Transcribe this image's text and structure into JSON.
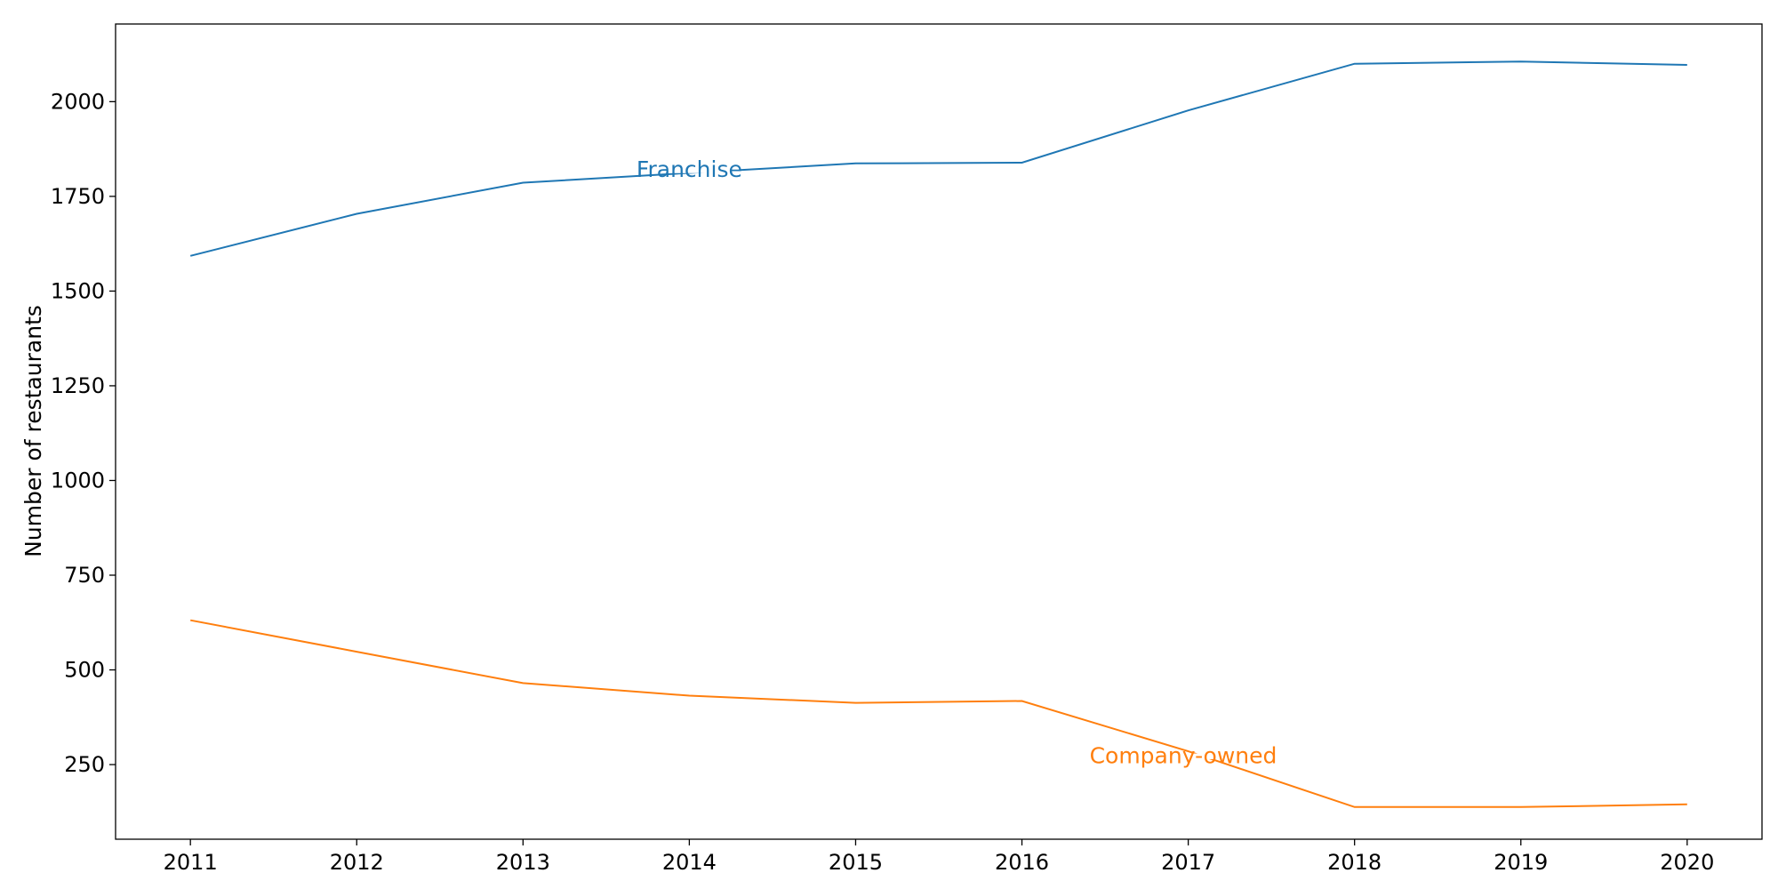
{
  "chart_data": {
    "type": "line",
    "title": "",
    "xlabel": "",
    "ylabel": "Number of restaurants",
    "x": [
      2011,
      2012,
      2013,
      2014,
      2015,
      2016,
      2017,
      2018,
      2019,
      2020
    ],
    "xlim": [
      2010.55,
      2020.45
    ],
    "ylim": [
      53,
      2205
    ],
    "yticks": [
      250,
      500,
      750,
      1000,
      1250,
      1500,
      1750,
      2000
    ],
    "grid": false,
    "legend": "none",
    "series": [
      {
        "name": "Franchise",
        "color": "#1f77b4",
        "values": [
          1593,
          1704,
          1786,
          1812,
          1837,
          1839,
          1977,
          2100,
          2106,
          2097
        ],
        "label_at": 2014,
        "label_value": 1822
      },
      {
        "name": "Company-owned",
        "color": "#ff7f0e",
        "values": [
          631,
          548,
          465,
          432,
          413,
          418,
          285,
          138,
          138,
          145
        ],
        "label_at": 2016.97,
        "label_value": 275
      }
    ]
  }
}
